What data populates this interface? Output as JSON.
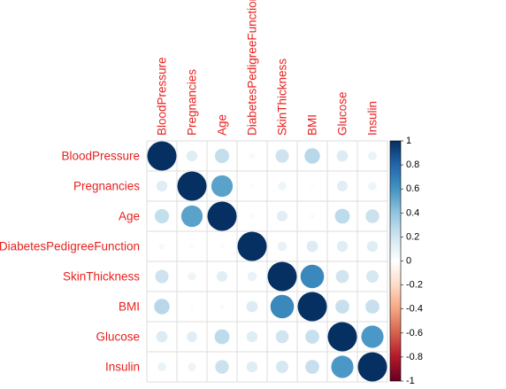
{
  "chart_data": {
    "type": "heatmap",
    "variables": [
      "BloodPressure",
      "Pregnancies",
      "Age",
      "DiabetesPedigreeFunction",
      "SkinThickness",
      "BMI",
      "Glucose",
      "Insulin"
    ],
    "matrix": [
      [
        1.0,
        0.14,
        0.24,
        0.04,
        0.21,
        0.28,
        0.15,
        0.09
      ],
      [
        0.14,
        1.0,
        0.54,
        -0.03,
        0.08,
        0.02,
        0.13,
        0.08
      ],
      [
        0.24,
        0.54,
        1.0,
        0.03,
        0.13,
        0.03,
        0.26,
        0.22
      ],
      [
        0.04,
        -0.03,
        0.03,
        1.0,
        0.1,
        0.15,
        0.14,
        0.14
      ],
      [
        0.21,
        0.08,
        0.13,
        0.1,
        1.0,
        0.65,
        0.2,
        0.18
      ],
      [
        0.28,
        0.02,
        0.03,
        0.15,
        0.65,
        1.0,
        0.23,
        0.23
      ],
      [
        0.15,
        0.13,
        0.26,
        0.14,
        0.2,
        0.23,
        1.0,
        0.58
      ],
      [
        0.09,
        0.08,
        0.22,
        0.14,
        0.18,
        0.23,
        0.58,
        1.0
      ]
    ],
    "colorbar": {
      "range": [
        -1,
        1
      ],
      "ticks": [
        "1",
        "0.8",
        "0.6",
        "0.4",
        "0.2",
        "0",
        "-0.2",
        "-0.4",
        "-0.6",
        "-0.8",
        "-1"
      ],
      "stops": [
        "#053061",
        "#2166ac",
        "#4393c3",
        "#92c5de",
        "#d1e5f0",
        "#ffffff",
        "#fddbc7",
        "#f4a582",
        "#d6604d",
        "#b2182b",
        "#67001f"
      ]
    },
    "label_color": "#e8211f",
    "grid_color": "#dddddd"
  }
}
